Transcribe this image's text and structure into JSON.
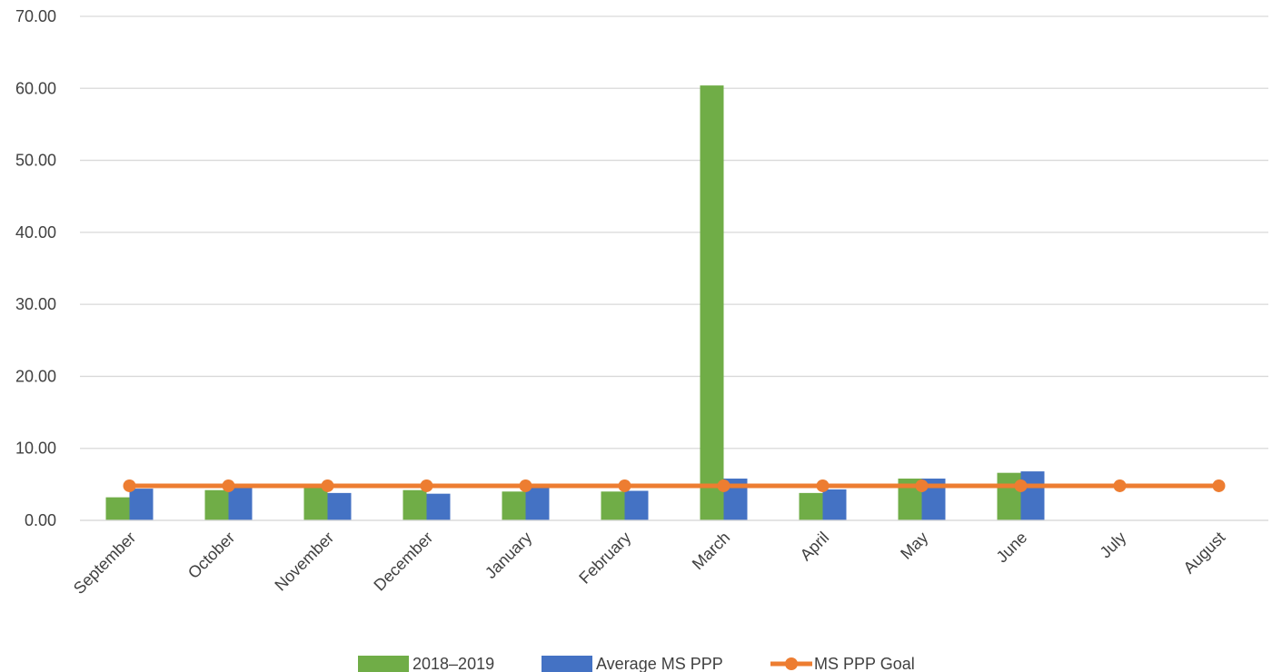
{
  "chart_data": {
    "type": "bar",
    "title": "",
    "xlabel": "",
    "ylabel": "",
    "ylim": [
      0,
      70
    ],
    "yticks": [
      "0.00",
      "10.00",
      "20.00",
      "30.00",
      "40.00",
      "50.00",
      "60.00",
      "70.00"
    ],
    "grid": true,
    "legend_position": "bottom",
    "categories": [
      "September",
      "October",
      "November",
      "December",
      "January",
      "February",
      "March",
      "April",
      "May",
      "June",
      "July",
      "August"
    ],
    "series": [
      {
        "name": "2018–2019",
        "type": "bar",
        "color": "#70ad47",
        "values": [
          3.2,
          4.2,
          4.6,
          4.2,
          4.0,
          4.0,
          60.4,
          3.8,
          5.8,
          6.6,
          null,
          null
        ]
      },
      {
        "name": "Average MS PPP",
        "type": "bar",
        "color": "#4472c4",
        "values": [
          4.4,
          4.8,
          3.8,
          3.7,
          4.7,
          4.1,
          5.8,
          4.3,
          5.8,
          6.8,
          null,
          null
        ]
      },
      {
        "name": "MS PPP Goal",
        "type": "line",
        "color": "#ed7d31",
        "values": [
          4.8,
          4.8,
          4.8,
          4.8,
          4.8,
          4.8,
          4.8,
          4.8,
          4.8,
          4.8,
          4.8,
          4.8
        ]
      }
    ]
  }
}
